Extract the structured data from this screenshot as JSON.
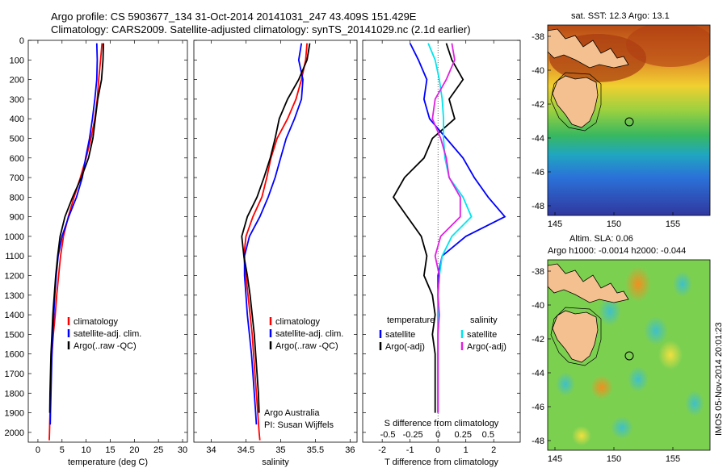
{
  "title_line1": "Argo profile: CS 5903677_134 31-Oct-2014 20141031_247 43.409S 151.429E",
  "title_line2": "Climatology: CARS2009. Satellite-adjusted climatology: synTS_20141029.nc (2.1d earlier)",
  "credit": {
    "line1": "Argo Australia",
    "line2": "PI: Susan Wijffels"
  },
  "stamp": "IMOS 05-Nov-2014 20:01:23",
  "maps": {
    "sst_title": "sat. SST: 12.3 Argo: 13.1",
    "sla_title1": "Altim. SLA: 0.06",
    "sla_title2": "Argo h1000: -0.0014 h2000: -0.044",
    "lat_ticks": [
      "-38",
      "-40",
      "-42",
      "-44",
      "-46",
      "-48"
    ],
    "lon_ticks": [
      "145",
      "150",
      "155"
    ],
    "colors": {
      "land": "#f5c08f",
      "float_marker": "#000000"
    }
  },
  "chart_data": [
    {
      "type": "line",
      "xlabel": "temperature (deg C)",
      "ylabel": "",
      "xlim": [
        -2,
        31
      ],
      "ylim": [
        2050,
        0
      ],
      "xticks": [
        0,
        5,
        10,
        15,
        20,
        25,
        30
      ],
      "yticks": [
        0,
        100,
        200,
        300,
        400,
        500,
        600,
        700,
        800,
        900,
        1000,
        1100,
        1200,
        1300,
        1400,
        1500,
        1600,
        1700,
        1800,
        1900,
        2000
      ],
      "legend": [
        "climatology",
        "satellite-adj. clim.",
        "Argo(..raw -QC)"
      ],
      "legend_position": "lower-middle",
      "series": [
        {
          "name": "climatology",
          "color": "#ff0000",
          "x": [
            13.3,
            13.0,
            12.6,
            12.3,
            11.8,
            11.0,
            10.0,
            8.8,
            7.5,
            6.3,
            5.3,
            4.7,
            4.3,
            3.9,
            3.6,
            3.2,
            2.9,
            2.7,
            2.6,
            2.5,
            2.4,
            2.35
          ],
          "y": [
            15,
            100,
            200,
            300,
            400,
            500,
            600,
            700,
            800,
            900,
            1000,
            1100,
            1200,
            1300,
            1400,
            1500,
            1600,
            1700,
            1800,
            1900,
            2000,
            2040
          ]
        },
        {
          "name": "satellite-adj. clim.",
          "color": "#0000ff",
          "x": [
            12.2,
            12.3,
            12.2,
            11.8,
            11.3,
            10.7,
            9.9,
            9.2,
            8.0,
            6.4,
            5.0,
            4.2,
            3.8,
            3.5,
            3.3,
            3.1,
            2.9,
            2.8,
            2.7,
            2.6,
            2.55
          ],
          "y": [
            15,
            100,
            200,
            300,
            400,
            500,
            600,
            700,
            800,
            900,
            1000,
            1100,
            1200,
            1300,
            1400,
            1500,
            1600,
            1700,
            1800,
            1900,
            1960
          ]
        },
        {
          "name": "Argo(..raw -QC)",
          "color": "#000000",
          "x": [
            13.6,
            13.5,
            13.2,
            12.4,
            11.9,
            11.4,
            10.5,
            9.0,
            7.2,
            5.6,
            4.6,
            4.1,
            3.7,
            3.4,
            3.1,
            2.9,
            2.7,
            2.6,
            2.5,
            2.45
          ],
          "y": [
            15,
            100,
            200,
            300,
            400,
            500,
            600,
            700,
            800,
            900,
            1000,
            1100,
            1200,
            1300,
            1400,
            1500,
            1600,
            1700,
            1800,
            1900
          ]
        }
      ]
    },
    {
      "type": "line",
      "xlabel": "salinity",
      "ylabel": "",
      "xlim": [
        33.75,
        36.1
      ],
      "ylim": [
        2050,
        0
      ],
      "xticks": [
        34,
        34.5,
        35,
        35.5,
        36
      ],
      "xticklabels": [
        "34",
        "34.5",
        "35",
        "35.5",
        "36"
      ],
      "legend": [
        "climatology",
        "satellite-adj. clim.",
        "Argo(..raw -QC)"
      ],
      "legend_position": "lower-middle",
      "series": [
        {
          "name": "climatology",
          "color": "#ff0000",
          "x": [
            35.38,
            35.36,
            35.3,
            35.22,
            35.1,
            34.95,
            34.86,
            34.8,
            34.73,
            34.6,
            34.5,
            34.47,
            34.5,
            34.53,
            34.56,
            34.59,
            34.61,
            34.63,
            34.65,
            34.67,
            34.69,
            34.7
          ],
          "y": [
            15,
            100,
            200,
            300,
            400,
            500,
            600,
            700,
            800,
            900,
            1000,
            1100,
            1200,
            1300,
            1400,
            1500,
            1600,
            1700,
            1800,
            1900,
            2000,
            2040
          ]
        },
        {
          "name": "satellite-adj. clim.",
          "color": "#0000ff",
          "x": [
            35.3,
            35.26,
            35.32,
            35.3,
            35.2,
            35.08,
            35.0,
            34.92,
            34.82,
            34.7,
            34.55,
            34.48,
            34.48,
            34.5,
            34.52,
            34.55,
            34.58,
            34.6,
            34.62,
            34.64,
            34.65
          ],
          "y": [
            15,
            100,
            200,
            300,
            400,
            500,
            600,
            700,
            800,
            900,
            1000,
            1100,
            1200,
            1300,
            1400,
            1500,
            1600,
            1700,
            1800,
            1900,
            1960
          ]
        },
        {
          "name": "Argo(..raw -QC)",
          "color": "#000000",
          "x": [
            35.42,
            35.38,
            35.26,
            35.1,
            34.98,
            34.92,
            34.85,
            34.76,
            34.66,
            34.52,
            34.44,
            34.47,
            34.52,
            34.56,
            34.59,
            34.62,
            34.64,
            34.66,
            34.68,
            34.69
          ],
          "y": [
            15,
            100,
            200,
            300,
            400,
            500,
            600,
            700,
            800,
            900,
            1000,
            1100,
            1200,
            1300,
            1400,
            1500,
            1600,
            1700,
            1800,
            1900
          ]
        }
      ]
    },
    {
      "type": "line",
      "xlabel": "T difference from climatology",
      "top_axis_label": "S difference from climatology",
      "ylabel": "",
      "xlim": [
        -2.7,
        2.95
      ],
      "ylim": [
        2050,
        0
      ],
      "xticks": [
        -2,
        -1,
        0,
        1,
        2
      ],
      "top_xticks": [
        "-0.5",
        "-0.25",
        "0",
        "0.25",
        "0.5"
      ],
      "legend_headers": [
        "temperature",
        "salinity"
      ],
      "legend": [
        "satellite",
        "Argo(-adj)",
        "satellite",
        "Argo(-adj)"
      ],
      "legend_position": "lower-middle",
      "series": [
        {
          "name": "satellite",
          "group": "temperature",
          "color": "#0000ff",
          "x": [
            -1.0,
            -0.7,
            -0.4,
            -0.5,
            -0.3,
            0.3,
            0.9,
            1.3,
            1.8,
            2.4,
            1.0,
            0.15,
            0.0,
            0.0,
            0.0,
            0.0,
            0.0,
            0.0,
            0.0,
            0.0
          ],
          "y": [
            15,
            100,
            200,
            300,
            400,
            500,
            600,
            700,
            800,
            900,
            1000,
            1100,
            1200,
            1300,
            1400,
            1500,
            1600,
            1700,
            1800,
            1900
          ]
        },
        {
          "name": "Argo(-adj)",
          "group": "temperature",
          "color": "#000000",
          "x": [
            0.3,
            0.5,
            0.9,
            0.4,
            0.6,
            -0.2,
            -0.5,
            -1.2,
            -1.6,
            -1.1,
            -0.6,
            -0.4,
            -0.5,
            -0.2,
            -0.1,
            -0.2,
            -0.1,
            -0.1,
            -0.1,
            -0.1
          ],
          "y": [
            15,
            100,
            200,
            300,
            400,
            500,
            600,
            700,
            800,
            900,
            1000,
            1100,
            1200,
            1300,
            1400,
            1500,
            1600,
            1700,
            1800,
            1900
          ]
        },
        {
          "name": "satellite",
          "group": "salinity",
          "color": "#00e5ee",
          "x": [
            -0.35,
            -0.1,
            0.05,
            0.15,
            0.2,
            0.2,
            0.25,
            0.4,
            0.9,
            1.2,
            0.5,
            0.15,
            0.05,
            0.0,
            0.0,
            0.0,
            0.0,
            0.0,
            0.0,
            0.0
          ],
          "y": [
            15,
            100,
            200,
            300,
            400,
            500,
            600,
            700,
            800,
            900,
            1000,
            1100,
            1200,
            1300,
            1400,
            1500,
            1600,
            1700,
            1800,
            1900
          ]
        },
        {
          "name": "Argo(-adj)",
          "group": "salinity",
          "color": "#e020e0",
          "x": [
            0.5,
            0.6,
            0.3,
            -0.1,
            -0.2,
            0.1,
            0.3,
            0.4,
            0.8,
            0.8,
            0.1,
            -0.1,
            0.05,
            0.0,
            0.05,
            0.0,
            0.0,
            0.0,
            0.0,
            0.0
          ],
          "y": [
            15,
            100,
            200,
            300,
            400,
            500,
            600,
            700,
            800,
            900,
            1000,
            1100,
            1200,
            1300,
            1400,
            1500,
            1600,
            1700,
            1800,
            1900
          ]
        }
      ]
    }
  ]
}
